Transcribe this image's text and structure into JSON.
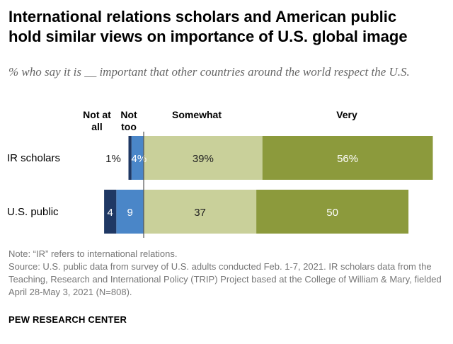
{
  "title_line1": "International relations scholars and American public",
  "title_line2": "hold similar views on importance of U.S. global image",
  "subtitle": "% who say it is __ important that other countries around the world respect the U.S.",
  "chart_data": {
    "type": "bar",
    "orientation": "horizontal",
    "stacked": "diverging",
    "categories": [
      "IR scholars",
      "U.S. public"
    ],
    "series": [
      {
        "name": "Not at all",
        "values": [
          1,
          4
        ],
        "labels": [
          "1%",
          "4"
        ],
        "color": "#1f3864"
      },
      {
        "name": "Not too",
        "values": [
          4,
          9
        ],
        "labels": [
          "4%",
          "9"
        ],
        "color": "#4a86c8"
      },
      {
        "name": "Somewhat",
        "values": [
          39,
          37
        ],
        "labels": [
          "39%",
          "37"
        ],
        "color": "#c9d09a"
      },
      {
        "name": "Very",
        "values": [
          56,
          50
        ],
        "labels": [
          "56%",
          "50"
        ],
        "color": "#8c9a3c"
      }
    ],
    "legend_header": [
      "Not at\nall",
      "Not\ntoo",
      "Somewhat",
      "Very"
    ]
  },
  "notes": [
    "Note: “IR” refers to international relations.",
    "Source: U.S. public data from survey of U.S. adults conducted Feb. 1-7, 2021. IR scholars data from the Teaching, Research and International Policy (TRIP) Project based at the College of William & Mary, fielded April 28-May 3, 2021 (N=808)."
  ],
  "brand": "PEW RESEARCH CENTER"
}
